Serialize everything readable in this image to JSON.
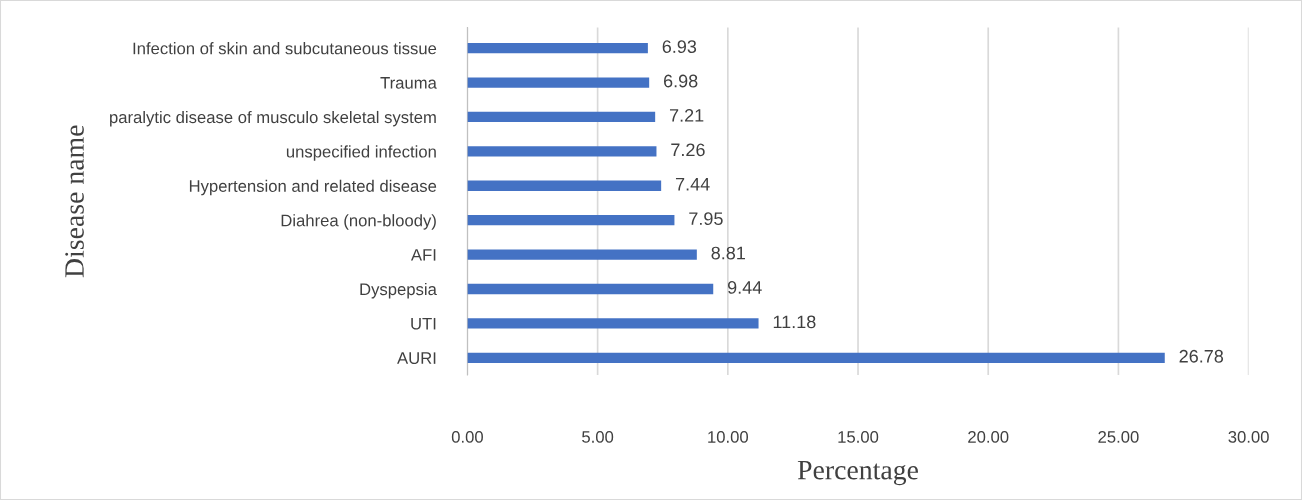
{
  "chart_data": {
    "type": "bar",
    "orientation": "horizontal",
    "xlabel": "Percentage",
    "ylabel": "Disease name",
    "categories": [
      "Infection of skin and subcutaneous tissue",
      "Trauma",
      "paralytic disease of musculo skeletal system",
      "unspecified infection",
      "Hypertension and related disease",
      "Diahrea (non-bloody)",
      "AFI",
      "Dyspepsia",
      "UTI",
      "AURI"
    ],
    "values": [
      6.93,
      6.98,
      7.21,
      7.26,
      7.44,
      7.95,
      8.81,
      9.44,
      11.18,
      26.78
    ],
    "color": "#4472c4",
    "xlim": [
      0,
      30
    ],
    "xticks": [
      {
        "value": 0,
        "label": "0.00"
      },
      {
        "value": 5,
        "label": "5.00"
      },
      {
        "value": 10,
        "label": "10.00"
      },
      {
        "value": 15,
        "label": "15.00"
      },
      {
        "value": 20,
        "label": "20.00"
      },
      {
        "value": 25,
        "label": "25.00"
      },
      {
        "value": 30,
        "label": "30.00"
      }
    ],
    "grid": "x",
    "data_labels": true
  }
}
